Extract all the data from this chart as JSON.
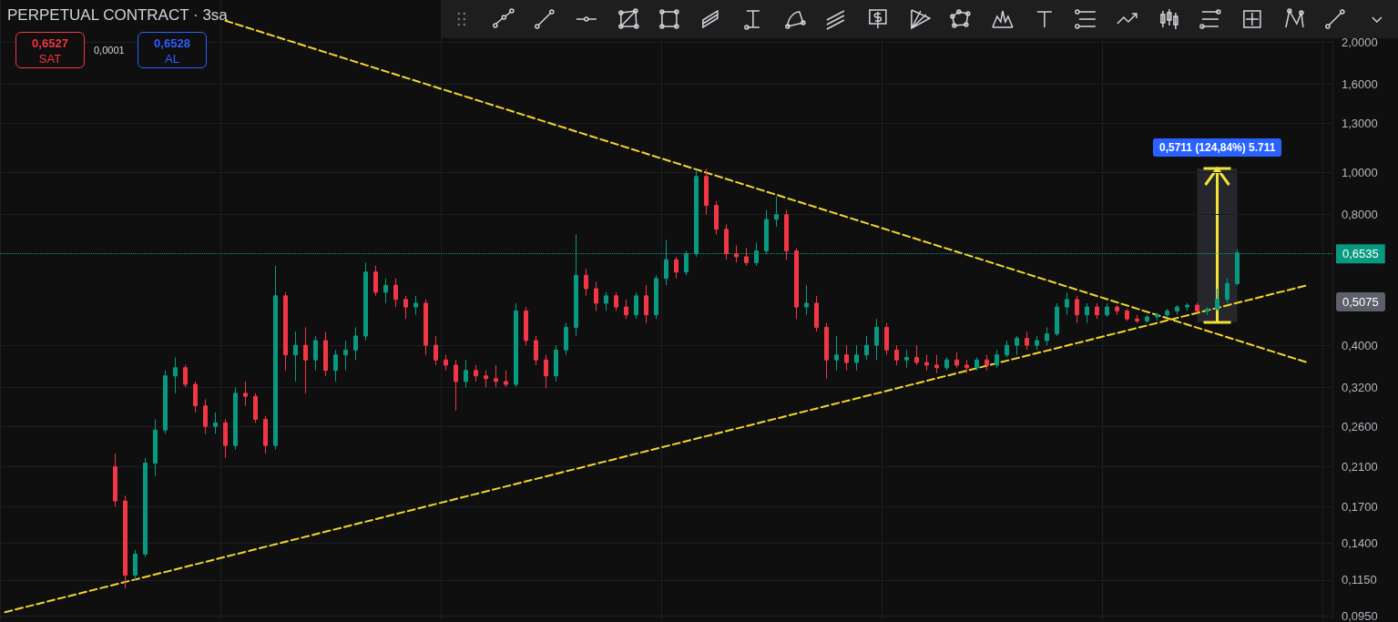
{
  "chart_data": {
    "type": "candlestick",
    "title": "PERPETUAL CONTRACT · 3sa",
    "categories": [
      null,
      null,
      null,
      null,
      null,
      null,
      null,
      null,
      null,
      null,
      null,
      null,
      null,
      null,
      null,
      null,
      null,
      null,
      null,
      null,
      null,
      null,
      null,
      null,
      null,
      null,
      null,
      null,
      null,
      null,
      null,
      null,
      null,
      null,
      null,
      null,
      null,
      null,
      null,
      null,
      null,
      null,
      null,
      null,
      null,
      null,
      null,
      null,
      null,
      null,
      null,
      null,
      null,
      null,
      null,
      null,
      null,
      null,
      null,
      null,
      null,
      null,
      null,
      null,
      null,
      null,
      null,
      null,
      null,
      null,
      null,
      null,
      null,
      null,
      null,
      null,
      null,
      null,
      null,
      null,
      null,
      null,
      null,
      null,
      null,
      null,
      null,
      null,
      null,
      null,
      null,
      null,
      null,
      null,
      null,
      null,
      null,
      null,
      null,
      null,
      null,
      null,
      null,
      null,
      null,
      null,
      null,
      null,
      null,
      null,
      null,
      null,
      null,
      null,
      null,
      null,
      null,
      null,
      null,
      null,
      null,
      null,
      null,
      null,
      null,
      null,
      null,
      null,
      null,
      null,
      null,
      null,
      null
    ],
    "ohlc": [
      null,
      null,
      null,
      null,
      null,
      null,
      null,
      null,
      null,
      null,
      null,
      [
        0.21,
        0.225,
        0.17,
        0.175
      ],
      [
        0.175,
        0.18,
        0.11,
        0.118
      ],
      [
        0.118,
        0.135,
        0.115,
        0.132
      ],
      [
        0.132,
        0.22,
        0.13,
        0.214
      ],
      [
        0.214,
        0.27,
        0.2,
        0.255
      ],
      [
        0.255,
        0.35,
        0.25,
        0.34
      ],
      [
        0.34,
        0.375,
        0.31,
        0.355
      ],
      [
        0.355,
        0.36,
        0.32,
        0.325
      ],
      [
        0.325,
        0.33,
        0.28,
        0.29
      ],
      [
        0.29,
        0.3,
        0.25,
        0.26
      ],
      [
        0.26,
        0.28,
        0.25,
        0.265
      ],
      [
        0.265,
        0.27,
        0.22,
        0.235
      ],
      [
        0.235,
        0.32,
        0.23,
        0.31
      ],
      [
        0.31,
        0.33,
        0.29,
        0.305
      ],
      [
        0.305,
        0.31,
        0.265,
        0.27
      ],
      [
        0.27,
        0.275,
        0.225,
        0.235
      ],
      [
        0.235,
        0.61,
        0.23,
        0.52
      ],
      [
        0.52,
        0.53,
        0.35,
        0.38
      ],
      [
        0.38,
        0.43,
        0.33,
        0.4
      ],
      [
        0.4,
        0.44,
        0.31,
        0.37
      ],
      [
        0.37,
        0.42,
        0.35,
        0.41
      ],
      [
        0.41,
        0.43,
        0.34,
        0.35
      ],
      [
        0.35,
        0.39,
        0.33,
        0.38
      ],
      [
        0.38,
        0.41,
        0.35,
        0.39
      ],
      [
        0.39,
        0.44,
        0.37,
        0.42
      ],
      [
        0.42,
        0.62,
        0.41,
        0.59
      ],
      [
        0.59,
        0.61,
        0.52,
        0.53
      ],
      [
        0.53,
        0.57,
        0.5,
        0.55
      ],
      [
        0.55,
        0.57,
        0.49,
        0.51
      ],
      [
        0.51,
        0.52,
        0.46,
        0.49
      ],
      [
        0.49,
        0.52,
        0.47,
        0.5
      ],
      [
        0.5,
        0.51,
        0.38,
        0.4
      ],
      [
        0.4,
        0.42,
        0.36,
        0.37
      ],
      [
        0.37,
        0.38,
        0.35,
        0.36
      ],
      [
        0.36,
        0.37,
        0.283,
        0.33
      ],
      [
        0.33,
        0.37,
        0.32,
        0.35
      ],
      [
        0.35,
        0.36,
        0.33,
        0.34
      ],
      [
        0.34,
        0.35,
        0.32,
        0.335
      ],
      [
        0.335,
        0.36,
        0.32,
        0.33
      ],
      [
        0.33,
        0.35,
        0.32,
        0.325
      ],
      [
        0.325,
        0.5,
        0.32,
        0.48
      ],
      [
        0.48,
        0.49,
        0.4,
        0.41
      ],
      [
        0.41,
        0.42,
        0.36,
        0.37
      ],
      [
        0.37,
        0.38,
        0.318,
        0.34
      ],
      [
        0.34,
        0.4,
        0.33,
        0.39
      ],
      [
        0.39,
        0.45,
        0.38,
        0.44
      ],
      [
        0.44,
        0.72,
        0.42,
        0.58
      ],
      [
        0.58,
        0.6,
        0.52,
        0.54
      ],
      [
        0.54,
        0.56,
        0.48,
        0.5
      ],
      [
        0.5,
        0.53,
        0.48,
        0.52
      ],
      [
        0.52,
        0.53,
        0.48,
        0.49
      ],
      [
        0.49,
        0.51,
        0.46,
        0.47
      ],
      [
        0.47,
        0.53,
        0.46,
        0.52
      ],
      [
        0.52,
        0.55,
        0.45,
        0.47
      ],
      [
        0.47,
        0.58,
        0.46,
        0.57
      ],
      [
        0.57,
        0.7,
        0.55,
        0.63
      ],
      [
        0.63,
        0.64,
        0.57,
        0.59
      ],
      [
        0.59,
        0.66,
        0.58,
        0.65
      ],
      [
        0.65,
        1.01,
        0.64,
        0.98
      ],
      [
        0.98,
        1.02,
        0.8,
        0.84
      ],
      [
        0.84,
        0.86,
        0.72,
        0.74
      ],
      [
        0.74,
        0.76,
        0.63,
        0.65
      ],
      [
        0.65,
        0.68,
        0.62,
        0.64
      ],
      [
        0.64,
        0.67,
        0.61,
        0.62
      ],
      [
        0.62,
        0.69,
        0.61,
        0.66
      ],
      [
        0.66,
        0.82,
        0.65,
        0.78
      ],
      [
        0.78,
        0.88,
        0.75,
        0.8
      ],
      [
        0.8,
        0.82,
        0.63,
        0.66
      ],
      [
        0.66,
        0.67,
        0.46,
        0.49
      ],
      [
        0.49,
        0.55,
        0.47,
        0.5
      ],
      [
        0.5,
        0.52,
        0.43,
        0.44
      ],
      [
        0.44,
        0.45,
        0.335,
        0.37
      ],
      [
        0.37,
        0.42,
        0.35,
        0.38
      ],
      [
        0.38,
        0.4,
        0.35,
        0.365
      ],
      [
        0.365,
        0.4,
        0.35,
        0.38
      ],
      [
        0.38,
        0.42,
        0.37,
        0.4
      ],
      [
        0.4,
        0.46,
        0.37,
        0.44
      ],
      [
        0.44,
        0.45,
        0.38,
        0.39
      ],
      [
        0.39,
        0.4,
        0.36,
        0.37
      ],
      [
        0.37,
        0.39,
        0.355,
        0.375
      ],
      [
        0.375,
        0.4,
        0.36,
        0.365
      ],
      [
        0.365,
        0.38,
        0.35,
        0.36
      ],
      [
        0.36,
        0.38,
        0.345,
        0.355
      ],
      [
        0.355,
        0.375,
        0.35,
        0.37
      ],
      [
        0.37,
        0.385,
        0.355,
        0.36
      ],
      [
        0.36,
        0.37,
        0.345,
        0.355
      ],
      [
        0.355,
        0.375,
        0.35,
        0.37
      ],
      [
        0.37,
        0.38,
        0.35,
        0.36
      ],
      [
        0.36,
        0.39,
        0.355,
        0.38
      ],
      [
        0.38,
        0.41,
        0.375,
        0.4
      ],
      [
        0.4,
        0.42,
        0.38,
        0.415
      ],
      [
        0.415,
        0.43,
        0.39,
        0.4
      ],
      [
        0.4,
        0.42,
        0.39,
        0.41
      ],
      [
        0.41,
        0.44,
        0.4,
        0.425
      ],
      [
        0.425,
        0.5,
        0.42,
        0.49
      ],
      [
        0.49,
        0.53,
        0.47,
        0.51
      ],
      [
        0.51,
        0.52,
        0.45,
        0.47
      ],
      [
        0.47,
        0.5,
        0.45,
        0.49
      ],
      [
        0.49,
        0.5,
        0.46,
        0.47
      ],
      [
        0.47,
        0.5,
        0.465,
        0.49
      ],
      [
        0.49,
        0.495,
        0.47,
        0.48
      ],
      [
        0.48,
        0.485,
        0.455,
        0.46
      ],
      [
        0.46,
        0.47,
        0.45,
        0.455
      ],
      [
        0.455,
        0.47,
        0.45,
        0.465
      ],
      [
        0.465,
        0.475,
        0.455,
        0.47
      ],
      [
        0.47,
        0.485,
        0.465,
        0.48
      ],
      [
        0.48,
        0.495,
        0.47,
        0.49
      ],
      [
        0.49,
        0.5,
        0.48,
        0.495
      ],
      [
        0.495,
        0.5,
        0.475,
        0.48
      ],
      [
        0.48,
        0.49,
        0.47,
        0.485
      ],
      [
        0.485,
        0.54,
        0.48,
        0.51
      ],
      [
        0.51,
        0.57,
        0.5,
        0.555
      ],
      [
        0.555,
        0.665,
        0.55,
        0.6535
      ],
      null,
      null,
      null,
      null,
      null,
      null,
      null,
      null,
      null
    ],
    "series": [
      {
        "type": "line",
        "color": "#f2d531",
        "line_style": "dashed",
        "marker": "none",
        "values": [
          0.097,
          null,
          null,
          null,
          null,
          null,
          null,
          null,
          null,
          null,
          null,
          null,
          null,
          null,
          null,
          null,
          null,
          null,
          null,
          null,
          null,
          null,
          null,
          null,
          null,
          null,
          null,
          null,
          null,
          null,
          null,
          null,
          null,
          null,
          null,
          null,
          null,
          null,
          null,
          null,
          null,
          null,
          null,
          null,
          null,
          null,
          null,
          null,
          null,
          null,
          null,
          null,
          null,
          null,
          null,
          null,
          null,
          null,
          null,
          null,
          null,
          null,
          null,
          null,
          null,
          null,
          null,
          null,
          null,
          null,
          null,
          null,
          null,
          null,
          null,
          null,
          null,
          null,
          null,
          null,
          null,
          null,
          null,
          null,
          null,
          null,
          null,
          null,
          null,
          null,
          null,
          null,
          null,
          null,
          null,
          null,
          null,
          null,
          null,
          null,
          null,
          null,
          null,
          null,
          null,
          null,
          null,
          null,
          null,
          null,
          null,
          null,
          null,
          null,
          null,
          null,
          null,
          null,
          null,
          null,
          null,
          null,
          null,
          null,
          null,
          null,
          null,
          null,
          null,
          null,
          0.55,
          null,
          null
        ]
      },
      {
        "type": "line",
        "color": "#f2d531",
        "line_style": "dashed",
        "marker": "none",
        "values": [
          null,
          null,
          null,
          null,
          null,
          null,
          null,
          null,
          null,
          null,
          null,
          null,
          null,
          null,
          null,
          null,
          null,
          null,
          null,
          null,
          null,
          null,
          2.24,
          null,
          null,
          null,
          null,
          null,
          null,
          null,
          null,
          null,
          null,
          null,
          null,
          null,
          null,
          null,
          null,
          null,
          null,
          null,
          null,
          null,
          null,
          null,
          null,
          null,
          null,
          null,
          null,
          null,
          null,
          null,
          null,
          null,
          null,
          null,
          null,
          null,
          null,
          null,
          null,
          null,
          null,
          null,
          null,
          null,
          null,
          null,
          null,
          null,
          null,
          null,
          null,
          null,
          null,
          null,
          null,
          null,
          null,
          null,
          null,
          null,
          null,
          null,
          null,
          null,
          null,
          null,
          null,
          null,
          null,
          null,
          null,
          null,
          null,
          null,
          null,
          null,
          null,
          null,
          null,
          null,
          null,
          null,
          null,
          null,
          null,
          null,
          null,
          null,
          null,
          null,
          null,
          null,
          null,
          null,
          null,
          null,
          null,
          null,
          null,
          null,
          null,
          null,
          null,
          null,
          null,
          null,
          0.365,
          null,
          null
        ]
      }
    ],
    "log": "y",
    "ylim": [
      0.093,
      2.5
    ],
    "yticks": [
      {
        "value": 0.095,
        "label": "0,0950"
      },
      {
        "value": 0.115,
        "label": "0,1150"
      },
      {
        "value": 0.14,
        "label": "0,1400"
      },
      {
        "value": 0.17,
        "label": "0,1700"
      },
      {
        "value": 0.21,
        "label": "0,2100"
      },
      {
        "value": 0.26,
        "label": "0,2600"
      },
      {
        "value": 0.32,
        "label": "0,3200"
      },
      {
        "value": 0.4,
        "label": "0,4000"
      },
      {
        "value": 0.8,
        "label": "0,8000"
      },
      {
        "value": 1,
        "label": "1,0000"
      },
      {
        "value": 1.3,
        "label": "1,3000"
      },
      {
        "value": 1.6,
        "label": "1,6000"
      },
      {
        "value": 2,
        "label": "2,0000"
      }
    ],
    "tick_labels": "y",
    "grid": true,
    "ref_lines": [
      {
        "axis": "y",
        "value": 0.6535,
        "label": "0,6535",
        "color": "#089981",
        "line_style": "dotted"
      }
    ],
    "annotations": [
      "0,6527",
      "SAT",
      "0,0001",
      "0,6528",
      "AL",
      "0,5711 (124,84%) 5.711",
      "0,5075"
    ]
  }
}
